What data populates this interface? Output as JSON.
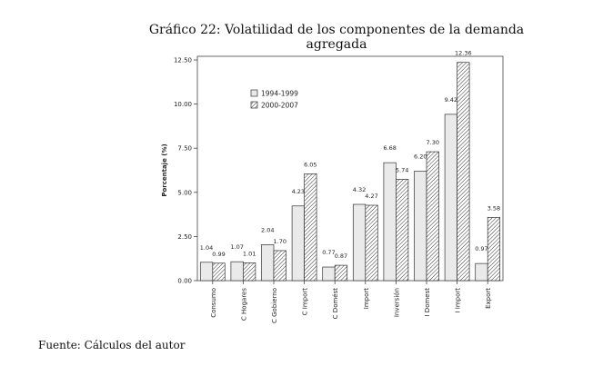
{
  "title": "Gráfico 22: Volatilidad de los componentes de la demanda agregada",
  "source_note": "Fuente: Cálculos del autor",
  "chart_data": {
    "type": "bar",
    "ylabel": "Porcentaje (%)",
    "xlabel": "",
    "ylim": [
      0,
      12.5
    ],
    "yticks": [
      "0.00",
      "2.50",
      "5.00",
      "7.50",
      "10.00",
      "12.50"
    ],
    "categories": [
      "Consumo",
      "C Hogares",
      "C Gobierno",
      "C Import",
      "C Domést",
      "Import",
      "Inversión",
      "I Domest",
      "I Import",
      "Export"
    ],
    "series": [
      {
        "name": "1994-1999",
        "values": [
          1.04,
          1.07,
          2.04,
          4.23,
          0.77,
          4.32,
          6.68,
          6.2,
          9.42,
          0.97
        ],
        "labels": [
          "1.04",
          "1.07",
          "2.04",
          "4.23",
          "0.77",
          "4.32",
          "6.68",
          "6.20",
          "9.42",
          "0.97"
        ]
      },
      {
        "name": "2000-2007",
        "values": [
          0.99,
          1.01,
          1.7,
          6.05,
          0.87,
          4.27,
          5.74,
          7.3,
          12.36,
          3.58
        ],
        "labels": [
          "0.99",
          "1.01",
          "1.70",
          "6.05",
          "0.87",
          "4.27",
          "5.74",
          "7.30",
          "12.36",
          "3.58"
        ]
      }
    ],
    "legend_position": "top-left inside plot",
    "grid": false,
    "colors": {
      "series1_fill": "#eaeaea",
      "series2_hatch": "#333333",
      "axis": "#333333"
    }
  }
}
